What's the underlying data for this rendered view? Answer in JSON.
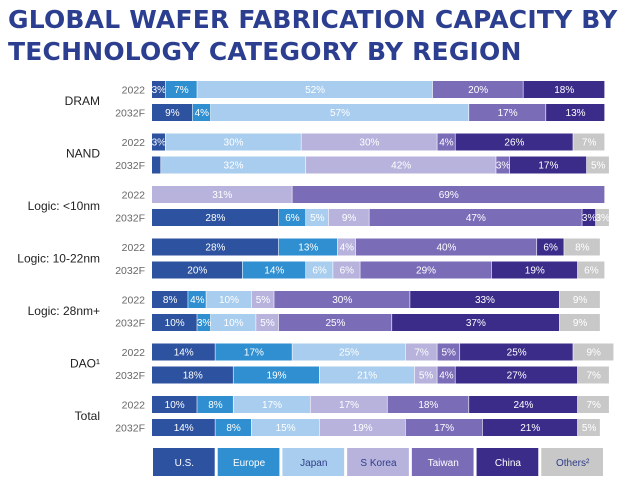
{
  "chart_data": {
    "type": "bar",
    "orientation": "horizontal",
    "stacked": "100%",
    "title": "GLOBAL WAFER FABRICATION CAPACITY BY TECHNOLOGY CATEGORY BY REGION",
    "series": [
      {
        "name": "U.S.",
        "color": "#2c52a0"
      },
      {
        "name": "Europe",
        "color": "#2f8fd0"
      },
      {
        "name": "Japan",
        "color": "#a9cdee"
      },
      {
        "name": "S Korea",
        "color": "#b7b3dd"
      },
      {
        "name": "Taiwan",
        "color": "#7b6cb8"
      },
      {
        "name": "China",
        "color": "#3c2c8a"
      },
      {
        "name": "Others²",
        "color": "#c8c8c8"
      }
    ],
    "label_colors": [
      "#ffffff",
      "#ffffff",
      "#ffffff",
      "#ffffff",
      "#ffffff",
      "#ffffff",
      "#ffffff"
    ],
    "categories": [
      {
        "name": "DRAM",
        "rows": [
          {
            "year": "2022",
            "values": [
              3,
              7,
              52,
              0,
              20,
              18,
              0
            ],
            "labels": [
              "3%",
              "7%",
              "52%",
              "",
              "20%",
              "18%",
              ""
            ]
          },
          {
            "year": "2032F",
            "values": [
              9,
              4,
              57,
              0,
              17,
              13,
              0
            ],
            "labels": [
              "9%",
              "4%",
              "57%",
              "",
              "17%",
              "13%",
              ""
            ]
          }
        ]
      },
      {
        "name": "NAND",
        "rows": [
          {
            "year": "2022",
            "values": [
              3,
              0,
              30,
              30,
              4,
              26,
              7
            ],
            "labels": [
              "3%",
              "",
              "30%",
              "30%",
              "4%",
              "26%",
              "7%"
            ]
          },
          {
            "year": "2032F",
            "values": [
              2,
              0,
              32,
              42,
              3,
              17,
              5
            ],
            "labels": [
              "",
              "",
              "32%",
              "42%",
              "3%",
              "17%",
              "5%"
            ]
          }
        ]
      },
      {
        "name": "Logic: <10nm",
        "rows": [
          {
            "year": "2022",
            "values": [
              0,
              0,
              0,
              31,
              69,
              0,
              0
            ],
            "labels": [
              "",
              "",
              "",
              "31%",
              "69%",
              "",
              ""
            ]
          },
          {
            "year": "2032F",
            "values": [
              28,
              6,
              5,
              9,
              47,
              3,
              3
            ],
            "labels": [
              "28%",
              "6%",
              "5%",
              "9%",
              "47%",
              "3%",
              "3%"
            ]
          }
        ]
      },
      {
        "name": "Logic: 10-22nm",
        "rows": [
          {
            "year": "2022",
            "values": [
              28,
              13,
              0,
              4,
              40,
              6,
              8
            ],
            "labels": [
              "28%",
              "13%",
              "",
              "4%",
              "40%",
              "6%",
              "8%"
            ]
          },
          {
            "year": "2032F",
            "values": [
              20,
              14,
              6,
              6,
              29,
              19,
              6
            ],
            "labels": [
              "20%",
              "14%",
              "6%",
              "6%",
              "29%",
              "19%",
              "6%"
            ]
          }
        ]
      },
      {
        "name": "Logic: 28nm+",
        "rows": [
          {
            "year": "2022",
            "values": [
              8,
              4,
              10,
              5,
              30,
              33,
              9
            ],
            "labels": [
              "8%",
              "4%",
              "10%",
              "5%",
              "30%",
              "33%",
              "9%"
            ]
          },
          {
            "year": "2032F",
            "values": [
              10,
              3,
              10,
              5,
              25,
              37,
              9
            ],
            "labels": [
              "10%",
              "3%",
              "10%",
              "5%",
              "25%",
              "37%",
              "9%"
            ]
          }
        ]
      },
      {
        "name": "DAO¹",
        "rows": [
          {
            "year": "2022",
            "values": [
              14,
              17,
              25,
              7,
              5,
              25,
              9
            ],
            "labels": [
              "14%",
              "17%",
              "25%",
              "7%",
              "5%",
              "25%",
              "9%"
            ]
          },
          {
            "year": "2032F",
            "values": [
              18,
              19,
              21,
              5,
              4,
              27,
              7
            ],
            "labels": [
              "18%",
              "19%",
              "21%",
              "5%",
              "4%",
              "27%",
              "7%"
            ]
          }
        ]
      },
      {
        "name": "Total",
        "rows": [
          {
            "year": "2022",
            "values": [
              10,
              8,
              17,
              17,
              18,
              24,
              7
            ],
            "labels": [
              "10%",
              "8%",
              "17%",
              "17%",
              "18%",
              "24%",
              "7%"
            ]
          },
          {
            "year": "2032F",
            "values": [
              14,
              8,
              15,
              19,
              17,
              21,
              5
            ],
            "labels": [
              "14%",
              "8%",
              "15%",
              "19%",
              "17%",
              "21%",
              "5%"
            ]
          }
        ]
      }
    ],
    "xlim": [
      0,
      100
    ],
    "legend_position": "bottom"
  }
}
